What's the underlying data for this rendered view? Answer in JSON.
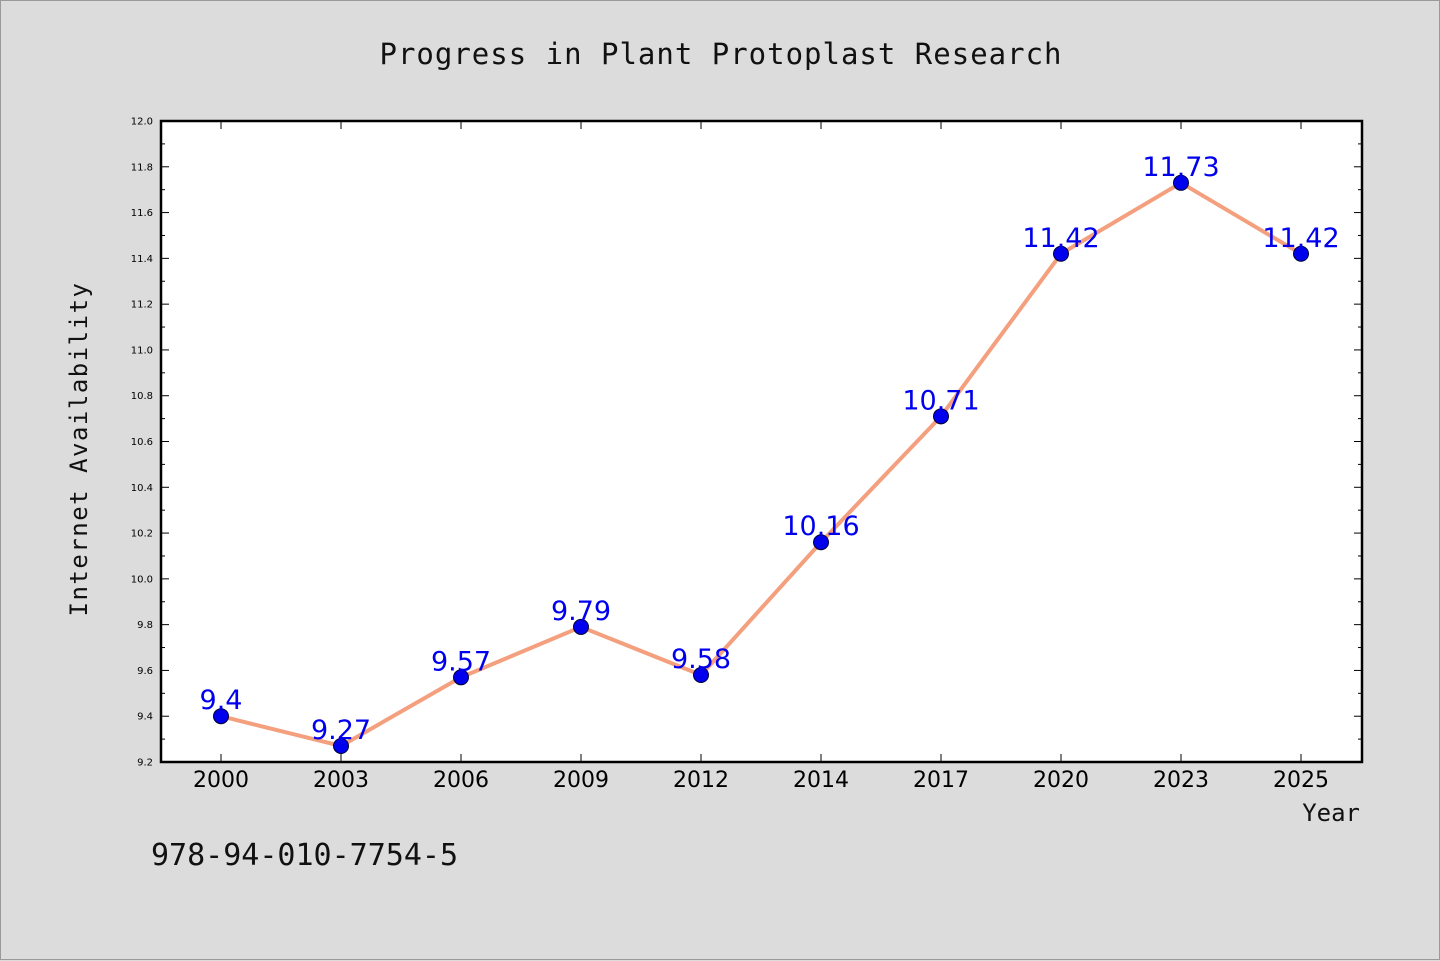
{
  "chart_data": {
    "type": "line",
    "title": "Progress in Plant Protoplast Research",
    "xlabel": "Year",
    "ylabel": "Internet Availability",
    "categories": [
      "2000",
      "2003",
      "2006",
      "2009",
      "2012",
      "2014",
      "2017",
      "2020",
      "2023",
      "2025"
    ],
    "values": [
      9.4,
      9.27,
      9.57,
      9.79,
      9.58,
      10.16,
      10.71,
      11.42,
      11.73,
      11.42
    ],
    "data_labels": [
      "9.4",
      "9.27",
      "9.57",
      "9.79",
      "9.58",
      "10.16",
      "10.71",
      "11.42",
      "11.73",
      "11.42"
    ],
    "ylim": [
      9.2,
      12.0
    ],
    "yticks": [
      "9.2",
      "9.4",
      "9.6",
      "9.8",
      "10.0",
      "10.2",
      "10.4",
      "10.6",
      "10.8",
      "11.0",
      "11.2",
      "11.4",
      "11.6",
      "11.8",
      "12.0"
    ],
    "grid": false,
    "line_color": "#f4a07e",
    "marker_color": "#0000ee",
    "label_color": "#0000ee"
  },
  "footer": {
    "isbn": "978-94-010-7754-5"
  }
}
